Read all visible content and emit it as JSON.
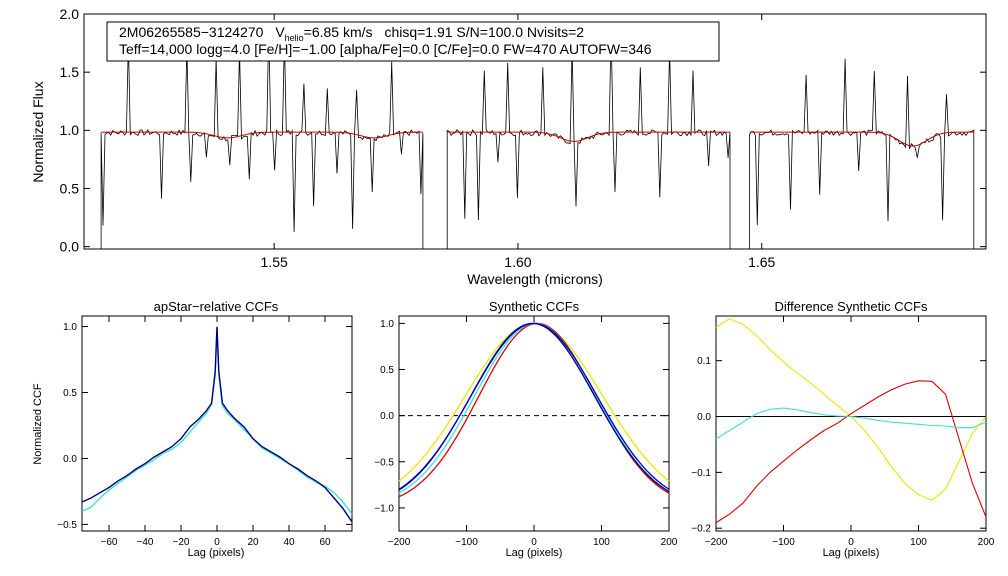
{
  "chart_data": [
    {
      "type": "line",
      "id": "spectrum",
      "xlabel": "Wavelength (microns)",
      "ylabel": "Normalized Flux",
      "xlim": [
        1.511,
        1.696
      ],
      "ylim": [
        -0.02,
        2.0
      ],
      "xticks": [
        1.55,
        1.6,
        1.65
      ],
      "xtick_labels": [
        "1.55",
        "1.60",
        "1.65"
      ],
      "yticks": [
        0.0,
        0.5,
        1.0,
        1.5,
        2.0
      ],
      "ytick_labels": [
        "0.0",
        "0.5",
        "1.0",
        "1.5",
        "2.0"
      ],
      "legend": {
        "object": "2M06265585−3124270",
        "vhelio_label": "V",
        "vhelio_sub": "helio",
        "vhelio_value": "=6.85 km/s",
        "rest1": "chisq=1.91  S/N=100.0  Nvisits=2",
        "line2": "Teff=14,000 logg=4.0 [Fe/H]=−1.00 [alpha/Fe]=0.0 [C/Fe]=0.0 FW=470 AUTOFW=346"
      },
      "chips": [
        [
          1.5145,
          1.5805
        ],
        [
          1.5855,
          1.6435
        ],
        [
          1.6475,
          1.6935
        ]
      ],
      "continuum": 0.98,
      "spikes_up": [
        1.52,
        1.532,
        1.538,
        1.543,
        1.549,
        1.552,
        1.556,
        1.561,
        1.567,
        1.574,
        1.593,
        1.598,
        1.605,
        1.611,
        1.619,
        1.625,
        1.631,
        1.636,
        1.659,
        1.667,
        1.673,
        1.68,
        1.688
      ],
      "spikes_down": [
        1.515,
        1.527,
        1.533,
        1.536,
        1.541,
        1.545,
        1.55,
        1.554,
        1.558,
        1.563,
        1.566,
        1.57,
        1.576,
        1.58,
        1.589,
        1.592,
        1.596,
        1.6,
        1.612,
        1.62,
        1.629,
        1.639,
        1.643,
        1.649,
        1.656,
        1.662,
        1.67,
        1.676,
        1.682,
        1.687
      ],
      "absorption_dips": [
        [
          1.5405,
          0.05
        ],
        [
          1.5705,
          0.05
        ],
        [
          1.6115,
          0.08
        ],
        [
          1.681,
          0.12
        ]
      ],
      "series": [
        {
          "name": "observed",
          "color": "#000000"
        },
        {
          "name": "model",
          "color": "#cc0000"
        }
      ]
    },
    {
      "type": "line",
      "id": "apstar_ccf",
      "title": "apStar−relative CCFs",
      "xlabel": "Lag (pixels)",
      "ylabel": "Normalized CCF",
      "xlim": [
        -75,
        75
      ],
      "ylim": [
        -0.55,
        1.08
      ],
      "xticks": [
        -60,
        -40,
        -20,
        0,
        20,
        40,
        60
      ],
      "xtick_labels": [
        "−60",
        "−40",
        "−20",
        "0",
        "20",
        "40",
        "60"
      ],
      "yticks": [
        -0.5,
        0.0,
        0.5,
        1.0
      ],
      "ytick_labels": [
        "−0.5",
        "0.0",
        "0.5",
        "1.0"
      ],
      "series": [
        {
          "name": "visit-a",
          "color": "#000080",
          "x": [
            -75,
            -70,
            -65,
            -60,
            -55,
            -50,
            -45,
            -40,
            -35,
            -30,
            -25,
            -20,
            -15,
            -10,
            -6,
            -3,
            -1,
            0,
            1,
            3,
            6,
            10,
            15,
            20,
            25,
            30,
            35,
            40,
            45,
            50,
            55,
            60,
            65,
            70,
            75
          ],
          "y": [
            -0.33,
            -0.3,
            -0.26,
            -0.22,
            -0.17,
            -0.13,
            -0.08,
            -0.04,
            0.01,
            0.05,
            0.09,
            0.15,
            0.24,
            0.3,
            0.36,
            0.42,
            0.66,
            1.0,
            0.66,
            0.42,
            0.36,
            0.3,
            0.24,
            0.15,
            0.09,
            0.05,
            0.01,
            -0.04,
            -0.08,
            -0.13,
            -0.17,
            -0.22,
            -0.3,
            -0.38,
            -0.48
          ]
        },
        {
          "name": "visit-b",
          "color": "#40e0d0",
          "x": [
            -75,
            -70,
            -65,
            -60,
            -55,
            -50,
            -45,
            -40,
            -35,
            -30,
            -25,
            -20,
            -15,
            -10,
            -6,
            -3,
            -1,
            0,
            1,
            3,
            6,
            10,
            15,
            20,
            25,
            30,
            35,
            40,
            45,
            50,
            55,
            60,
            65,
            70,
            75
          ],
          "y": [
            -0.4,
            -0.37,
            -0.3,
            -0.24,
            -0.19,
            -0.14,
            -0.09,
            -0.05,
            -0.01,
            0.04,
            0.07,
            0.12,
            0.2,
            0.28,
            0.34,
            0.41,
            0.64,
            0.99,
            0.64,
            0.4,
            0.34,
            0.29,
            0.22,
            0.15,
            0.08,
            0.04,
            0.0,
            -0.04,
            -0.09,
            -0.14,
            -0.18,
            -0.21,
            -0.26,
            -0.33,
            -0.42
          ]
        }
      ]
    },
    {
      "type": "line",
      "id": "synthetic_ccf",
      "title": "Synthetic CCFs",
      "xlabel": "Lag (pixels)",
      "xlim": [
        -200,
        200
      ],
      "ylim": [
        -1.25,
        1.08
      ],
      "xticks": [
        -200,
        -100,
        0,
        100,
        200
      ],
      "xtick_labels": [
        "−200",
        "−100",
        "0",
        "100",
        "200"
      ],
      "yticks": [
        -1.0,
        -0.5,
        0.0,
        0.5,
        1.0
      ],
      "ytick_labels": [
        "−1.0",
        "−0.5",
        "0.0",
        "0.5",
        "1.0"
      ],
      "zero_line": 0.0,
      "series": [
        {
          "name": "blue",
          "color": "#0000cc",
          "width": 110,
          "shift": 0
        },
        {
          "name": "navy",
          "color": "#000080",
          "width": 108,
          "shift": -2
        },
        {
          "name": "cyan",
          "color": "#40e0d0",
          "width": 106,
          "shift": 2
        },
        {
          "name": "yellow",
          "color": "#e8e800",
          "width": 120,
          "shift": 0
        },
        {
          "name": "red",
          "color": "#dd0000",
          "width": 102,
          "shift": 5
        }
      ]
    },
    {
      "type": "line",
      "id": "difference_ccf",
      "title": "Difference Synthetic CCFs",
      "xlabel": "Lag (pixels)",
      "xlim": [
        -200,
        200
      ],
      "ylim": [
        -0.205,
        0.18
      ],
      "xticks": [
        -200,
        -100,
        0,
        100,
        200
      ],
      "xtick_labels": [
        "−200",
        "−100",
        "0",
        "100",
        "200"
      ],
      "yticks": [
        -0.2,
        -0.1,
        0.0,
        0.1
      ],
      "ytick_labels": [
        "−0.2",
        "−0.1",
        "0.0",
        "0.1"
      ],
      "zero_line": 0.0,
      "series": [
        {
          "name": "yellow",
          "color": "#e8e800",
          "x": [
            -200,
            -180,
            -160,
            -140,
            -120,
            -100,
            -80,
            -60,
            -40,
            -20,
            0,
            20,
            40,
            60,
            80,
            100,
            120,
            140,
            160,
            180,
            200
          ],
          "y": [
            0.16,
            0.175,
            0.165,
            0.145,
            0.12,
            0.098,
            0.078,
            0.06,
            0.04,
            0.02,
            0.0,
            -0.025,
            -0.055,
            -0.09,
            -0.12,
            -0.14,
            -0.15,
            -0.13,
            -0.08,
            -0.03,
            0.0
          ]
        },
        {
          "name": "red",
          "color": "#dd0000",
          "x": [
            -200,
            -180,
            -160,
            -140,
            -120,
            -100,
            -80,
            -60,
            -40,
            -20,
            0,
            20,
            40,
            60,
            80,
            100,
            120,
            140,
            160,
            180,
            200
          ],
          "y": [
            -0.19,
            -0.175,
            -0.155,
            -0.125,
            -0.1,
            -0.08,
            -0.06,
            -0.042,
            -0.025,
            -0.012,
            0.005,
            0.02,
            0.035,
            0.048,
            0.058,
            0.064,
            0.063,
            0.04,
            -0.04,
            -0.12,
            -0.18
          ]
        },
        {
          "name": "cyan",
          "color": "#40e0d0",
          "x": [
            -200,
            -180,
            -160,
            -140,
            -120,
            -100,
            -80,
            -60,
            -40,
            -20,
            0,
            20,
            40,
            60,
            80,
            100,
            120,
            140,
            160,
            180,
            200
          ],
          "y": [
            -0.04,
            -0.025,
            -0.01,
            0.005,
            0.013,
            0.015,
            0.012,
            0.007,
            0.003,
            0.001,
            0.0,
            -0.003,
            -0.007,
            -0.01,
            -0.012,
            -0.014,
            -0.016,
            -0.017,
            -0.02,
            -0.02,
            -0.01
          ]
        }
      ]
    }
  ]
}
